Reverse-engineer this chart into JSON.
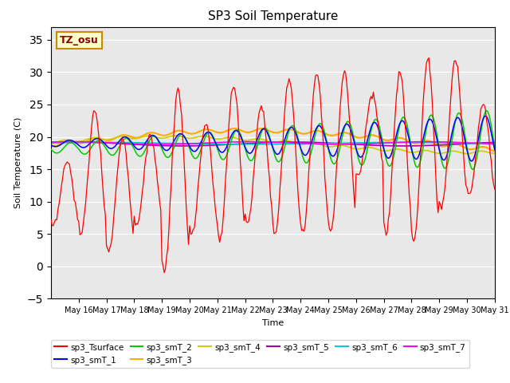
{
  "title": "SP3 Soil Temperature",
  "xlabel": "Time",
  "ylabel": "Soil Temperature (C)",
  "ylim": [
    -5,
    37
  ],
  "yticks": [
    -5,
    0,
    5,
    10,
    15,
    20,
    25,
    30,
    35
  ],
  "background_color": "#e8e8e8",
  "annotation_text": "TZ_osu",
  "annotation_bg": "#ffffcc",
  "annotation_border": "#cc8800",
  "series_colors": {
    "sp3_Tsurface": "#ff0000",
    "sp3_smT_1": "#0000ff",
    "sp3_smT_2": "#00cc00",
    "sp3_smT_3": "#ffaa00",
    "sp3_smT_4": "#cccc00",
    "sp3_smT_5": "#aa00aa",
    "sp3_smT_6": "#00cccc",
    "sp3_smT_7": "#ff00ff"
  },
  "x_tick_labels": [
    "May 16",
    "May 17",
    "May 18",
    "May 19",
    "May 20",
    "May 21",
    "May 22",
    "May 23",
    "May 24",
    "May 25",
    "May 26",
    "May 27",
    "May 28",
    "May 29",
    "May 30",
    "May 31"
  ]
}
